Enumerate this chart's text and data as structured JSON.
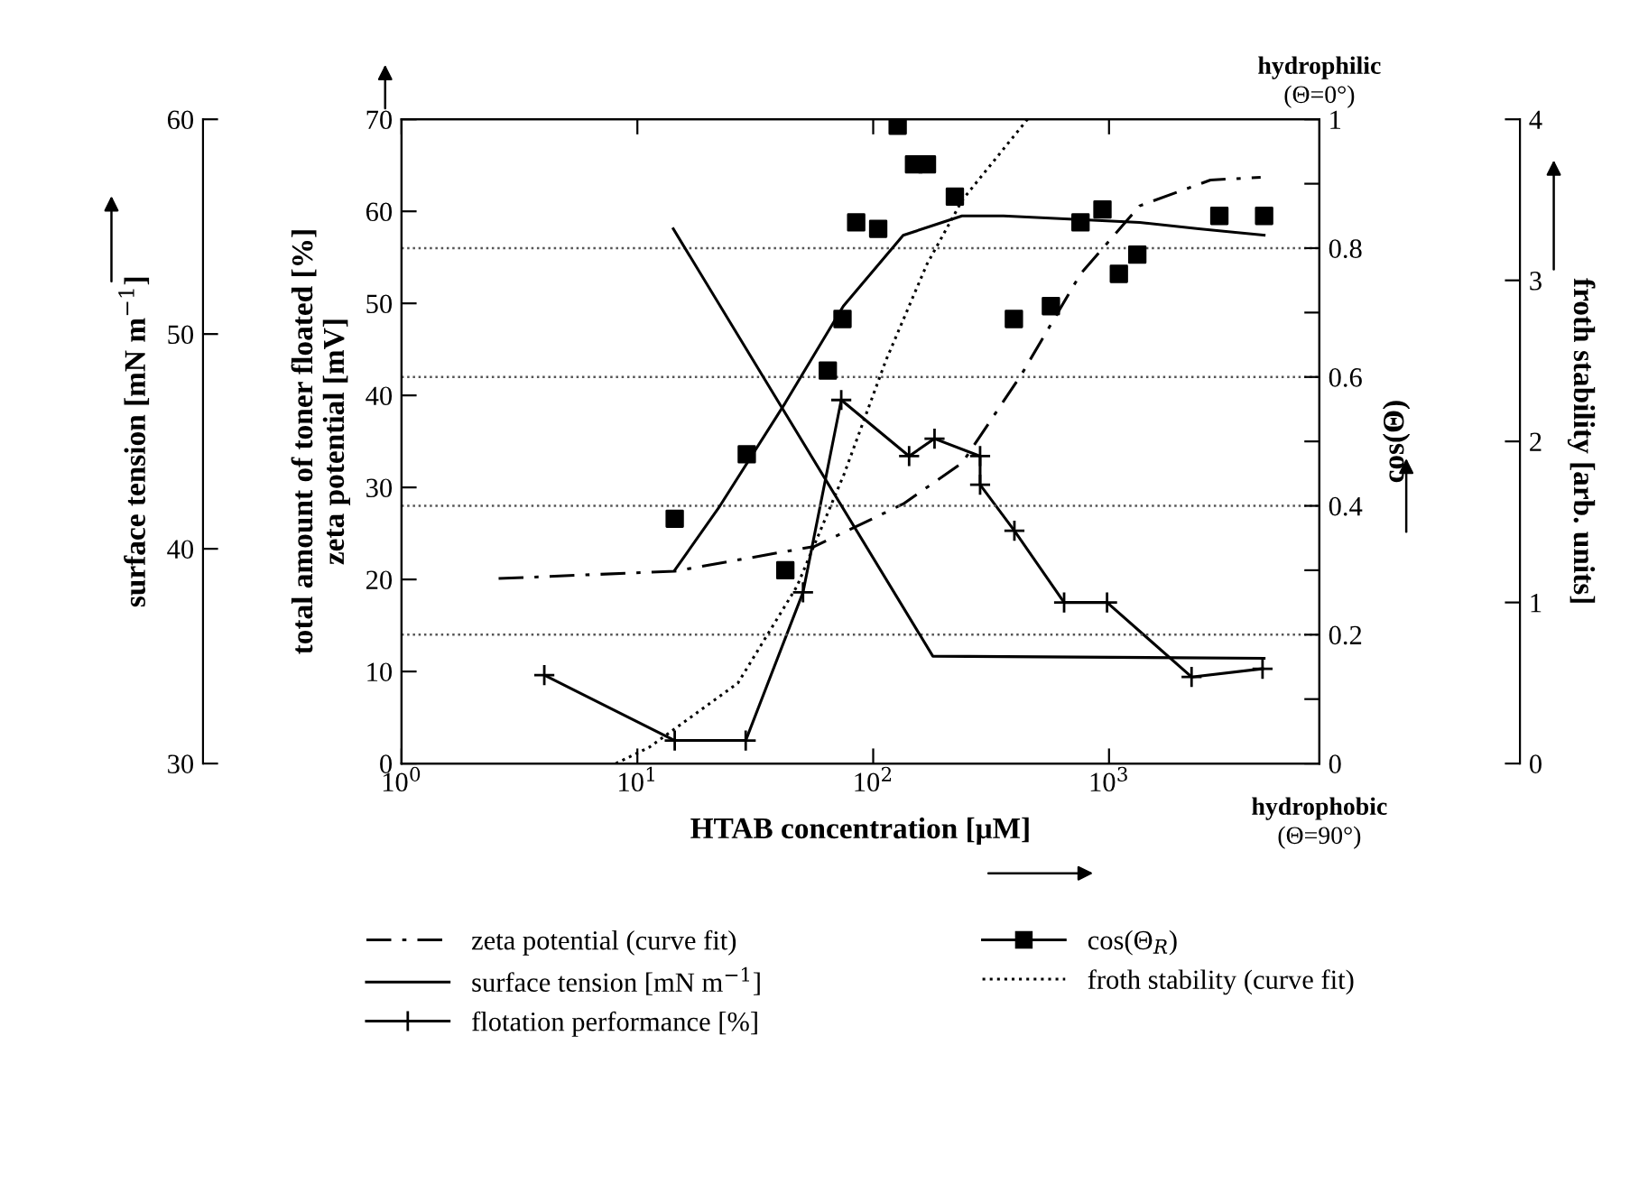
{
  "chart_data": [
    {
      "type": "line",
      "xlabel": "HTAB concentration [μM]",
      "ylabel": "total amount of toner floated [%]\nzeta potential [mV]",
      "y2label": "cos(Θ)",
      "y3label": "froth stability [arb. units]",
      "annotations": [
        "hydrophilic",
        "(Θ=0°)",
        "hydrophobic",
        "(Θ=90°)"
      ],
      "log": "x",
      "xlim": [
        1,
        7800
      ],
      "xticks": [
        {
          "value": 1,
          "label": "10$^{0}$"
        },
        {
          "value": 10,
          "label": "10$^{1}$"
        },
        {
          "value": 100,
          "label": "10$^{2}$"
        },
        {
          "value": 1000,
          "label": "10$^{3}$"
        }
      ],
      "ylim": [
        0,
        70
      ],
      "yticks": [
        0,
        10,
        20,
        30,
        40,
        50,
        60,
        70
      ],
      "y2lim": [
        0,
        1
      ],
      "y2ticks": [
        0,
        {
          "value": 0.1,
          "label": null
        },
        0.2,
        {
          "value": 0.3,
          "label": null
        },
        0.4,
        {
          "value": 0.5,
          "label": null
        },
        0.6,
        {
          "value": 0.7,
          "label": null
        },
        0.8,
        {
          "value": 0.9,
          "label": null
        },
        1
      ],
      "y3lim": [
        0,
        4
      ],
      "y3ticks": [
        0,
        1,
        2,
        3,
        4
      ],
      "grid": "y2",
      "legend": "bottom",
      "series": [
        {
          "name": "zeta potential (curve fit)",
          "type": "line",
          "color": "#000000",
          "line_style": "dashdot",
          "marker": "none",
          "x": [
            2.58,
            14.4,
            56.5,
            134,
            239,
            426,
            757,
            1349,
            2692,
            4395
          ],
          "values": [
            20.1,
            20.9,
            23.6,
            28.2,
            32.7,
            42.3,
            53.2,
            60.6,
            63.4,
            63.7
          ]
        },
        {
          "name": "flotation performance [%]",
          "type": "line",
          "color": "#000000",
          "line_style": "solid",
          "marker": "cross",
          "x": [
            4.03,
            14.4,
            28.8,
            50.4,
            73.2,
            142,
            182,
            284,
            284,
            397,
            645,
            981,
            2239,
            4477
          ],
          "values": [
            9.6,
            2.5,
            2.5,
            18.6,
            39.5,
            33.4,
            35.3,
            33.4,
            30.3,
            25.3,
            17.5,
            17.5,
            9.4,
            10.3
          ]
        },
        {
          "name": "cos(Θ$_{R}$)",
          "type": "scatter",
          "axis": "y2",
          "color": "#000000",
          "marker": "square",
          "x": [
            14.4,
            29.1,
            42.4,
            64.2,
            74.1,
            84.7,
            105,
            127,
            149,
            169,
            222,
            395,
            567,
            757,
            938,
            1101,
            1318,
            2937,
            4547
          ],
          "values": [
            0.38,
            0.48,
            0.3,
            0.61,
            0.69,
            0.84,
            0.83,
            0.99,
            0.93,
            0.93,
            0.88,
            0.69,
            0.71,
            0.84,
            0.86,
            0.76,
            0.79,
            0.85,
            0.85
          ]
        },
        {
          "type": "line",
          "axis": "y2",
          "color": "#000000",
          "line_style": "solid",
          "marker": "none",
          "x": [
            14.4,
            22.4,
            42.4,
            74.7,
            134,
            238,
            357,
            1349,
            2399,
            4547
          ],
          "values": [
            0.3,
            0.4,
            0.56,
            0.71,
            0.82,
            0.85,
            0.85,
            0.84,
            0.83,
            0.82
          ]
        },
        {
          "name": "froth stability (curve fit)",
          "type": "line",
          "axis": "y3",
          "color": "#000000",
          "line_style": "dotted",
          "marker": "none",
          "x": [
            8.1,
            11.2,
            26.7,
            47.5,
            75.4,
            113,
            169,
            239,
            451
          ],
          "values": [
            0,
            0.1,
            0.5,
            1.1,
            1.8,
            2.5,
            3.1,
            3.5,
            4.0
          ]
        }
      ]
    },
    {
      "type": "line",
      "ylabel": "surface tension [mN m$^{−1}$]",
      "log": "x",
      "xlim": [
        1,
        7800
      ],
      "ylim": [
        30,
        60
      ],
      "yticks": [
        30,
        40,
        50,
        60
      ],
      "tick_labels": "y",
      "series": [
        {
          "name": "surface tension [mN m$^{−1}$]",
          "type": "line",
          "color": "#000000",
          "line_style": "solid",
          "marker": "none",
          "x": [
            14.2,
            179,
            4547
          ],
          "values": [
            54.9,
            35.0,
            34.9
          ]
        }
      ]
    }
  ]
}
